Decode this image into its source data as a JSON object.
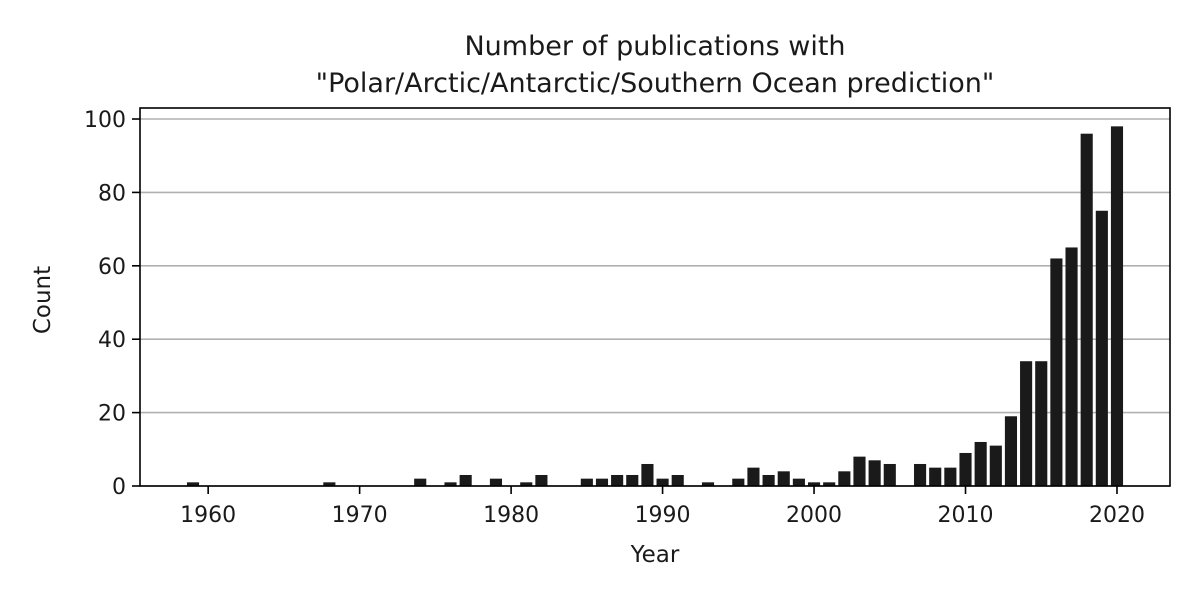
{
  "chart_data": {
    "type": "bar",
    "title": [
      "Number of publications with",
      "\"Polar/Arctic/Antarctic/Southern Ocean prediction\""
    ],
    "xlabel": "Year",
    "ylabel": "Count",
    "xlim": [
      1955.5,
      2023.5
    ],
    "ylim": [
      0,
      103
    ],
    "xticks": [
      1960,
      1970,
      1980,
      1990,
      2000,
      2010,
      2020
    ],
    "yticks": [
      0,
      20,
      40,
      60,
      80,
      100
    ],
    "grid": "horizontal",
    "bar_color": "#1a1a1a",
    "x": [
      1959,
      1968,
      1974,
      1976,
      1977,
      1979,
      1981,
      1982,
      1985,
      1986,
      1987,
      1988,
      1989,
      1990,
      1991,
      1993,
      1995,
      1996,
      1997,
      1998,
      1999,
      2000,
      2001,
      2002,
      2003,
      2004,
      2005,
      2007,
      2008,
      2009,
      2010,
      2011,
      2012,
      2013,
      2014,
      2015,
      2016,
      2017,
      2018,
      2019,
      2020
    ],
    "values": [
      1,
      1,
      2,
      1,
      3,
      2,
      1,
      3,
      2,
      2,
      3,
      3,
      6,
      2,
      3,
      1,
      2,
      5,
      3,
      4,
      2,
      1,
      1,
      4,
      8,
      7,
      6,
      6,
      5,
      5,
      9,
      12,
      11,
      19,
      34,
      34,
      62,
      65,
      96,
      75,
      98
    ]
  }
}
